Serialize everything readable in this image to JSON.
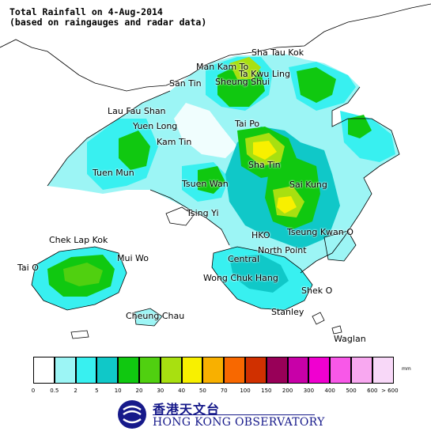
{
  "map": {
    "title_line1": "Total Rainfall on 4-Aug-2014",
    "title_line2": "(based on raingauges and radar data)",
    "places": [
      {
        "id": "sha-tau-kok",
        "name": "Sha Tau Kok"
      },
      {
        "id": "man-kam-to",
        "name": "Man Kam To"
      },
      {
        "id": "ta-kwu-ling",
        "name": "Ta Kwu Ling"
      },
      {
        "id": "sheung-shui",
        "name": "Sheung Shui"
      },
      {
        "id": "san-tin",
        "name": "San Tin"
      },
      {
        "id": "lau-fau-shan",
        "name": "Lau Fau Shan"
      },
      {
        "id": "yuen-long",
        "name": "Yuen Long"
      },
      {
        "id": "kam-tin",
        "name": "Kam Tin"
      },
      {
        "id": "tai-po",
        "name": "Tai Po"
      },
      {
        "id": "sha-tin",
        "name": "Sha Tin"
      },
      {
        "id": "tuen-mun",
        "name": "Tuen Mun"
      },
      {
        "id": "tsuen-wan",
        "name": "Tsuen Wan"
      },
      {
        "id": "sai-kung",
        "name": "Sai Kung"
      },
      {
        "id": "tsing-yi",
        "name": "Tsing Yi"
      },
      {
        "id": "chek-lap-kok",
        "name": "Chek Lap Kok"
      },
      {
        "id": "hko",
        "name": "HKO"
      },
      {
        "id": "tseung-kwan-o",
        "name": "Tseung Kwan O"
      },
      {
        "id": "north-point",
        "name": "North Point"
      },
      {
        "id": "mui-wo",
        "name": "Mui Wo"
      },
      {
        "id": "central",
        "name": "Central"
      },
      {
        "id": "tai-o",
        "name": "Tai O"
      },
      {
        "id": "wong-chuk-hang",
        "name": "Wong Chuk Hang"
      },
      {
        "id": "shek-o",
        "name": "Shek O"
      },
      {
        "id": "stanley",
        "name": "Stanley"
      },
      {
        "id": "cheung-chau",
        "name": "Cheung Chau"
      },
      {
        "id": "waglan",
        "name": "Waglan"
      }
    ]
  },
  "legend": {
    "unit": "mm",
    "ticks": [
      "0",
      "0.5",
      "2",
      "5",
      "10",
      "20",
      "30",
      "40",
      "50",
      "70",
      "100",
      "150",
      "200",
      "300",
      "400",
      "500",
      "600",
      "> 600"
    ],
    "colors": [
      "#ffffff",
      "#9cf5f5",
      "#38f0f0",
      "#10c8c8",
      "#10c810",
      "#50d010",
      "#a8e010",
      "#f8f000",
      "#f8b000",
      "#f86800",
      "#d03000",
      "#980058",
      "#c800a8",
      "#f000d0",
      "#f858e8",
      "#f8a8f0",
      "#f8d8f8"
    ]
  },
  "logo": {
    "cn": "香港天文台",
    "en": "HONG KONG OBSERVATORY"
  }
}
